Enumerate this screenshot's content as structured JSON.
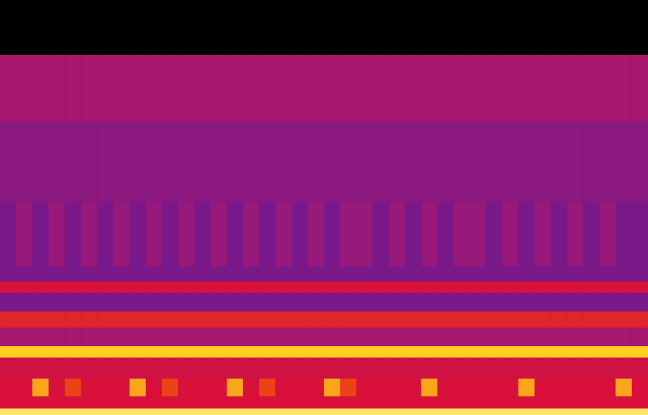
{
  "chart_data": {
    "type": "heatmap",
    "categories": [
      null,
      null,
      null,
      null,
      null,
      null,
      null,
      null,
      null,
      null,
      null,
      null,
      null,
      null,
      null,
      null,
      null,
      null,
      null,
      null,
      null,
      null,
      null,
      null,
      null,
      null,
      null,
      null,
      null,
      null,
      null,
      null,
      null,
      null,
      null,
      null,
      null,
      null,
      null,
      null
    ],
    "y_bins": [
      0,
      8,
      23,
      45,
      71,
      85,
      108,
      128,
      151,
      165,
      183,
      263,
      363,
      445,
      513
    ],
    "ylim": [
      0,
      513
    ],
    "zlim": [
      0,
      1
    ],
    "grid": false,
    "tick_labels": false,
    "cells": [
      [
        0.95,
        0.95,
        0.95,
        0.95,
        0.95,
        0.95,
        0.95,
        0.95,
        0.95,
        0.95,
        0.95,
        0.95,
        0.95,
        0.95,
        0.95,
        0.95,
        0.95,
        0.95,
        0.95,
        0.95,
        0.95,
        0.95,
        0.95,
        0.95,
        0.95,
        0.95,
        0.95,
        0.95,
        0.95,
        0.95,
        0.95,
        0.95,
        0.95,
        0.95,
        0.95,
        0.95,
        0.95,
        0.95,
        0.95,
        0.95
      ],
      [
        0.6,
        0.6,
        0.6,
        0.6,
        0.6,
        0.6,
        0.6,
        0.6,
        0.6,
        0.6,
        0.6,
        0.6,
        0.6,
        0.6,
        0.6,
        0.6,
        0.6,
        0.6,
        0.6,
        0.6,
        0.6,
        0.6,
        0.6,
        0.6,
        0.6,
        0.6,
        0.6,
        0.6,
        0.6,
        0.6,
        0.6,
        0.6,
        0.6,
        0.6,
        0.6,
        0.6,
        0.6,
        0.6,
        0.6,
        0.6
      ],
      [
        0.6,
        0.6,
        0.85,
        0.6,
        0.72,
        0.6,
        0.6,
        0.6,
        0.85,
        0.6,
        0.72,
        0.6,
        0.6,
        0.6,
        0.85,
        0.6,
        0.72,
        0.6,
        0.6,
        0.6,
        0.85,
        0.72,
        0.6,
        0.6,
        0.6,
        0.6,
        0.85,
        0.6,
        0.6,
        0.6,
        0.6,
        0.6,
        0.85,
        0.6,
        0.6,
        0.6,
        0.6,
        0.6,
        0.85,
        0.6
      ],
      [
        0.58,
        0.58,
        0.58,
        0.58,
        0.58,
        0.58,
        0.58,
        0.58,
        0.58,
        0.58,
        0.58,
        0.58,
        0.58,
        0.58,
        0.58,
        0.58,
        0.58,
        0.58,
        0.58,
        0.58,
        0.58,
        0.58,
        0.58,
        0.58,
        0.58,
        0.58,
        0.58,
        0.58,
        0.58,
        0.58,
        0.58,
        0.58,
        0.58,
        0.58,
        0.58,
        0.58,
        0.58,
        0.58,
        0.58,
        0.58
      ],
      [
        0.9,
        0.9,
        0.9,
        0.9,
        0.9,
        0.9,
        0.9,
        0.9,
        0.9,
        0.9,
        0.9,
        0.9,
        0.9,
        0.9,
        0.9,
        0.9,
        0.9,
        0.9,
        0.9,
        0.9,
        0.9,
        0.9,
        0.9,
        0.9,
        0.9,
        0.9,
        0.9,
        0.9,
        0.9,
        0.9,
        0.9,
        0.9,
        0.9,
        0.9,
        0.9,
        0.9,
        0.9,
        0.9,
        0.9,
        0.9
      ],
      [
        0.5,
        0.5,
        0.5,
        0.5,
        0.5,
        0.5,
        0.5,
        0.5,
        0.5,
        0.5,
        0.5,
        0.5,
        0.5,
        0.5,
        0.5,
        0.5,
        0.5,
        0.5,
        0.5,
        0.5,
        0.5,
        0.5,
        0.5,
        0.5,
        0.5,
        0.5,
        0.5,
        0.5,
        0.5,
        0.5,
        0.5,
        0.5,
        0.5,
        0.5,
        0.5,
        0.5,
        0.5,
        0.5,
        0.5,
        0.5
      ],
      [
        0.65,
        0.65,
        0.65,
        0.65,
        0.65,
        0.65,
        0.65,
        0.65,
        0.65,
        0.65,
        0.65,
        0.65,
        0.65,
        0.65,
        0.65,
        0.65,
        0.65,
        0.65,
        0.65,
        0.65,
        0.65,
        0.65,
        0.65,
        0.65,
        0.65,
        0.65,
        0.65,
        0.65,
        0.65,
        0.65,
        0.65,
        0.65,
        0.65,
        0.65,
        0.65,
        0.65,
        0.65,
        0.65,
        0.65,
        0.65
      ],
      [
        0.42,
        0.42,
        0.42,
        0.42,
        0.42,
        0.42,
        0.42,
        0.42,
        0.42,
        0.42,
        0.42,
        0.42,
        0.42,
        0.42,
        0.42,
        0.42,
        0.42,
        0.42,
        0.42,
        0.42,
        0.42,
        0.42,
        0.42,
        0.42,
        0.42,
        0.42,
        0.42,
        0.42,
        0.42,
        0.42,
        0.42,
        0.42,
        0.42,
        0.42,
        0.42,
        0.42,
        0.42,
        0.42,
        0.42,
        0.42
      ],
      [
        0.6,
        0.6,
        0.6,
        0.6,
        0.6,
        0.6,
        0.6,
        0.6,
        0.6,
        0.6,
        0.6,
        0.6,
        0.6,
        0.6,
        0.6,
        0.6,
        0.6,
        0.6,
        0.6,
        0.6,
        0.6,
        0.6,
        0.6,
        0.6,
        0.6,
        0.6,
        0.6,
        0.6,
        0.6,
        0.6,
        0.6,
        0.6,
        0.6,
        0.6,
        0.6,
        0.6,
        0.6,
        0.6,
        0.6,
        0.6
      ],
      [
        0.42,
        0.42,
        0.42,
        0.42,
        0.42,
        0.42,
        0.42,
        0.42,
        0.42,
        0.42,
        0.42,
        0.42,
        0.42,
        0.42,
        0.42,
        0.42,
        0.42,
        0.42,
        0.42,
        0.42,
        0.42,
        0.42,
        0.42,
        0.42,
        0.42,
        0.42,
        0.42,
        0.42,
        0.42,
        0.42,
        0.42,
        0.42,
        0.42,
        0.42,
        0.42,
        0.42,
        0.42,
        0.42,
        0.42,
        0.42
      ],
      [
        0.42,
        0.47,
        0.42,
        0.47,
        0.42,
        0.47,
        0.42,
        0.47,
        0.42,
        0.47,
        0.42,
        0.47,
        0.42,
        0.47,
        0.42,
        0.47,
        0.42,
        0.47,
        0.42,
        0.47,
        0.42,
        0.47,
        0.47,
        0.42,
        0.47,
        0.42,
        0.47,
        0.42,
        0.47,
        0.47,
        0.42,
        0.47,
        0.42,
        0.47,
        0.42,
        0.47,
        0.42,
        0.47,
        0.42,
        0.42
      ],
      [
        0.45,
        0.45,
        0.45,
        0.45,
        0.45,
        0.45,
        0.45,
        0.45,
        0.45,
        0.45,
        0.45,
        0.45,
        0.45,
        0.45,
        0.45,
        0.45,
        0.45,
        0.45,
        0.45,
        0.45,
        0.45,
        0.45,
        0.45,
        0.45,
        0.45,
        0.45,
        0.45,
        0.45,
        0.45,
        0.45,
        0.45,
        0.45,
        0.45,
        0.45,
        0.45,
        0.45,
        0.45,
        0.45,
        0.45,
        0.45
      ],
      [
        0.5,
        0.5,
        0.5,
        0.5,
        0.5,
        0.5,
        0.5,
        0.5,
        0.5,
        0.5,
        0.5,
        0.5,
        0.5,
        0.5,
        0.5,
        0.5,
        0.5,
        0.5,
        0.5,
        0.5,
        0.5,
        0.5,
        0.5,
        0.5,
        0.5,
        0.5,
        0.5,
        0.5,
        0.5,
        0.5,
        0.5,
        0.5,
        0.5,
        0.5,
        0.5,
        0.5,
        0.5,
        0.5,
        0.5,
        0.5
      ],
      [
        0,
        0,
        0,
        0,
        0,
        0,
        0,
        0,
        0,
        0,
        0,
        0,
        0,
        0,
        0,
        0,
        0,
        0,
        0,
        0,
        0,
        0,
        0,
        0,
        0,
        0,
        0,
        0,
        0,
        0,
        0,
        0,
        0,
        0,
        0,
        0,
        0,
        0,
        0,
        0
      ]
    ]
  }
}
